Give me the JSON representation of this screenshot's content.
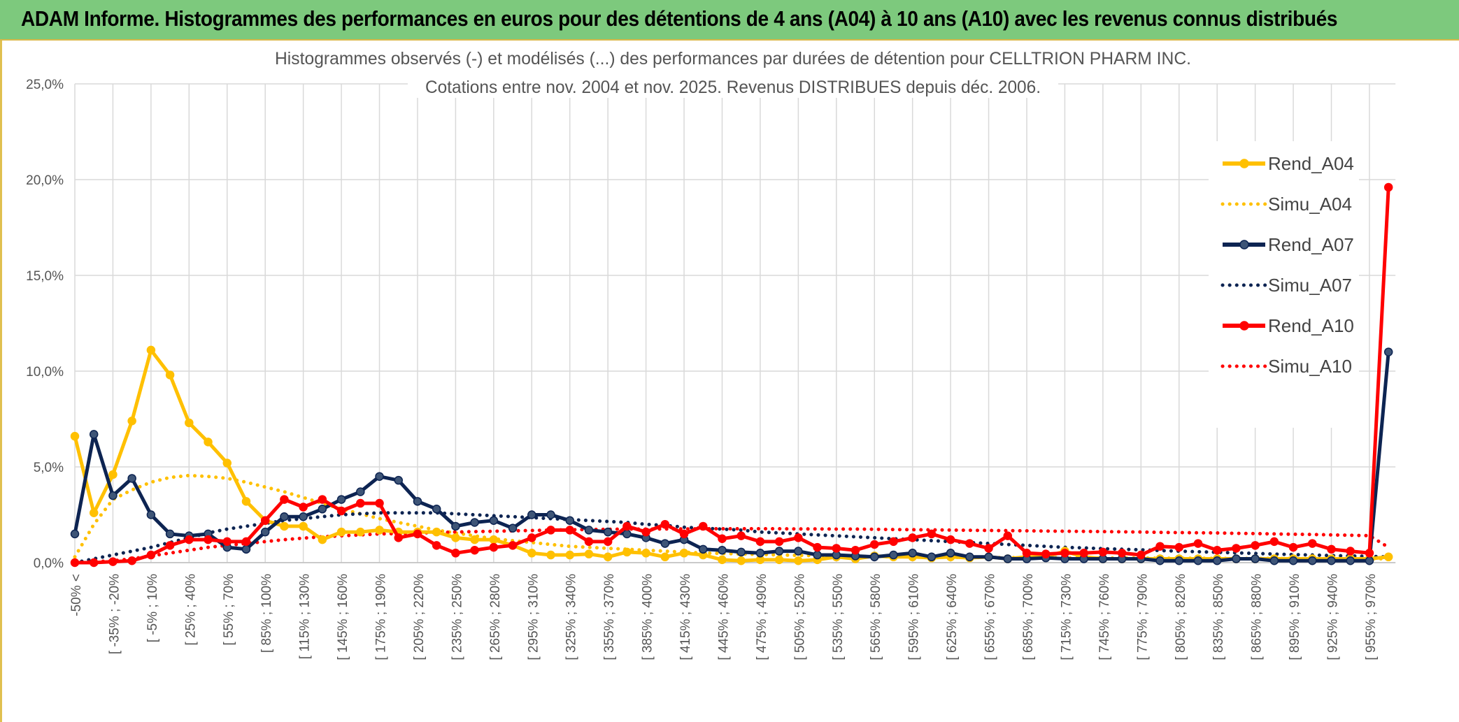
{
  "banner": {
    "title": "ADAM Informe. Histogrammes des performances en euros pour des détentions de 4 ans (A04) à 10 ans (A10) avec les revenus connus distribués"
  },
  "chart_data": {
    "type": "line",
    "title": "Histogrammes observés (-) et modélisés (...) des performances par durées de détention pour CELLTRION PHARM INC.",
    "subtitle": "Cotations entre nov. 2004 et nov. 2025. Revenus DISTRIBUES depuis déc. 2006.",
    "xlabel": "",
    "ylabel": "",
    "ylim": [
      0,
      25
    ],
    "yticks": [
      "0,0%",
      "5,0%",
      "10,0%",
      "15,0%",
      "20,0%",
      "25,0%"
    ],
    "grid": true,
    "legend_position": "right",
    "x_tick_labels": [
      "-50% <",
      "[ -35% ; -20%",
      "[ -5% ; 10%",
      "[ 25% ; 40%",
      "[ 55% ; 70%",
      "[ 85% ; 100%",
      "[ 115% ; 130%",
      "[ 145% ; 160%",
      "[ 175% ; 190%",
      "[ 205% ; 220%",
      "[ 235% ; 250%",
      "[ 265% ; 280%",
      "[ 295% ; 310%",
      "[ 325% ; 340%",
      "[ 355% ; 370%",
      "[ 385% ; 400%",
      "[ 415% ; 430%",
      "[ 445% ; 460%",
      "[ 475% ; 490%",
      "[ 505% ; 520%",
      "[ 535% ; 550%",
      "[ 565% ; 580%",
      "[ 595% ; 610%",
      "[ 625% ; 640%",
      "[ 655% ; 670%",
      "[ 685% ; 700%",
      "[ 715% ; 730%",
      "[ 745% ; 760%",
      "[ 775% ; 790%",
      "[ 805% ; 820%",
      "[ 835% ; 850%",
      "[ 865% ; 880%",
      "[ 895% ; 910%",
      "[ 925% ; 940%",
      "[ 955% ; 970%"
    ],
    "n_points": 70,
    "series": [
      {
        "name": "Rend_A04",
        "style": "solid",
        "markers": true,
        "color": "#ffc000",
        "values": [
          6.6,
          2.6,
          4.6,
          7.4,
          11.1,
          9.8,
          7.3,
          6.3,
          5.2,
          3.2,
          2.2,
          1.9,
          1.9,
          1.2,
          1.6,
          1.6,
          1.7,
          1.6,
          1.6,
          1.6,
          1.3,
          1.2,
          1.2,
          0.9,
          0.5,
          0.4,
          0.4,
          0.45,
          0.3,
          0.55,
          0.5,
          0.3,
          0.5,
          0.4,
          0.15,
          0.1,
          0.15,
          0.15,
          0.1,
          0.15,
          0.3,
          0.2,
          0.35,
          0.3,
          0.3,
          0.25,
          0.3,
          0.25,
          0.3,
          0.2,
          0.3,
          0.3,
          0.6,
          0.3,
          0.2,
          0.2,
          0.2,
          0.2,
          0.2,
          0.2,
          0.2,
          0.2,
          0.2,
          0.2,
          0.2,
          0.2,
          0.2,
          0.2,
          0.2,
          0.3
        ]
      },
      {
        "name": "Simu_A04",
        "style": "dotted",
        "markers": false,
        "color": "#ffc000",
        "values": [
          0.3,
          2.0,
          3.3,
          3.8,
          4.2,
          4.45,
          4.55,
          4.5,
          4.4,
          4.2,
          3.95,
          3.7,
          3.4,
          3.1,
          2.8,
          2.55,
          2.3,
          2.1,
          1.9,
          1.7,
          1.55,
          1.4,
          1.25,
          1.15,
          1.05,
          0.95,
          0.85,
          0.8,
          0.75,
          0.7,
          0.65,
          0.6,
          0.55,
          0.5,
          0.48,
          0.45,
          0.43,
          0.4,
          0.38,
          0.36,
          0.35,
          0.33,
          0.32,
          0.31,
          0.3,
          0.29,
          0.28,
          0.27,
          0.27,
          0.26,
          0.26,
          0.25,
          0.25,
          0.25,
          0.24,
          0.24,
          0.24,
          0.23,
          0.23,
          0.23,
          0.22,
          0.22,
          0.22,
          0.22,
          0.21,
          0.21,
          0.21,
          0.21,
          0.2,
          0.2
        ]
      },
      {
        "name": "Rend_A07",
        "style": "solid",
        "markers": true,
        "color": "#0d2452",
        "values": [
          1.5,
          6.7,
          3.5,
          4.4,
          2.5,
          1.5,
          1.4,
          1.5,
          0.8,
          0.7,
          1.6,
          2.4,
          2.4,
          2.8,
          3.3,
          3.7,
          4.5,
          4.3,
          3.2,
          2.8,
          1.9,
          2.1,
          2.2,
          1.8,
          2.5,
          2.5,
          2.2,
          1.7,
          1.6,
          1.5,
          1.3,
          1.0,
          1.2,
          0.7,
          0.65,
          0.55,
          0.5,
          0.6,
          0.6,
          0.4,
          0.4,
          0.35,
          0.3,
          0.4,
          0.5,
          0.3,
          0.5,
          0.3,
          0.3,
          0.2,
          0.2,
          0.25,
          0.2,
          0.2,
          0.2,
          0.2,
          0.2,
          0.1,
          0.1,
          0.1,
          0.1,
          0.2,
          0.2,
          0.1,
          0.1,
          0.1,
          0.1,
          0.1,
          0.1,
          11.0
        ]
      },
      {
        "name": "Simu_A07",
        "style": "dotted",
        "markers": false,
        "color": "#0d2452",
        "values": [
          0.0,
          0.2,
          0.4,
          0.6,
          0.8,
          1.05,
          1.3,
          1.55,
          1.75,
          1.9,
          2.05,
          2.2,
          2.3,
          2.4,
          2.5,
          2.55,
          2.6,
          2.6,
          2.6,
          2.6,
          2.55,
          2.5,
          2.45,
          2.4,
          2.35,
          2.3,
          2.25,
          2.2,
          2.15,
          2.1,
          2.0,
          1.95,
          1.85,
          1.8,
          1.75,
          1.7,
          1.6,
          1.55,
          1.5,
          1.45,
          1.4,
          1.35,
          1.3,
          1.25,
          1.2,
          1.15,
          1.1,
          1.05,
          1.0,
          0.95,
          0.9,
          0.85,
          0.8,
          0.77,
          0.73,
          0.7,
          0.67,
          0.63,
          0.6,
          0.57,
          0.54,
          0.51,
          0.48,
          0.45,
          0.42,
          0.4,
          0.37,
          0.35,
          0.33,
          0.3
        ]
      },
      {
        "name": "Rend_A10",
        "style": "solid",
        "markers": true,
        "color": "#ff0000",
        "values": [
          0.0,
          0.0,
          0.05,
          0.1,
          0.4,
          0.9,
          1.2,
          1.2,
          1.1,
          1.1,
          2.2,
          3.3,
          2.9,
          3.3,
          2.7,
          3.1,
          3.1,
          1.3,
          1.5,
          0.9,
          0.5,
          0.65,
          0.8,
          0.9,
          1.3,
          1.7,
          1.7,
          1.1,
          1.1,
          1.9,
          1.6,
          2.0,
          1.5,
          1.9,
          1.25,
          1.4,
          1.1,
          1.1,
          1.3,
          0.8,
          0.75,
          0.65,
          0.95,
          1.1,
          1.3,
          1.5,
          1.2,
          1.0,
          0.75,
          1.4,
          0.5,
          0.45,
          0.5,
          0.5,
          0.55,
          0.5,
          0.4,
          0.85,
          0.8,
          1.0,
          0.65,
          0.75,
          0.9,
          1.1,
          0.8,
          1.0,
          0.7,
          0.6,
          0.5,
          19.6
        ]
      },
      {
        "name": "Simu_A10",
        "style": "dotted",
        "markers": false,
        "color": "#ff0000",
        "values": [
          0.0,
          0.05,
          0.1,
          0.2,
          0.35,
          0.5,
          0.65,
          0.8,
          0.9,
          1.0,
          1.1,
          1.2,
          1.28,
          1.35,
          1.4,
          1.45,
          1.5,
          1.52,
          1.55,
          1.57,
          1.6,
          1.62,
          1.64,
          1.66,
          1.68,
          1.7,
          1.72,
          1.73,
          1.74,
          1.75,
          1.75,
          1.76,
          1.76,
          1.77,
          1.77,
          1.77,
          1.77,
          1.77,
          1.76,
          1.76,
          1.75,
          1.75,
          1.74,
          1.73,
          1.72,
          1.71,
          1.7,
          1.69,
          1.68,
          1.67,
          1.66,
          1.65,
          1.64,
          1.63,
          1.62,
          1.61,
          1.6,
          1.58,
          1.57,
          1.56,
          1.55,
          1.53,
          1.52,
          1.5,
          1.48,
          1.47,
          1.45,
          1.43,
          1.41,
          0.8
        ]
      }
    ]
  }
}
